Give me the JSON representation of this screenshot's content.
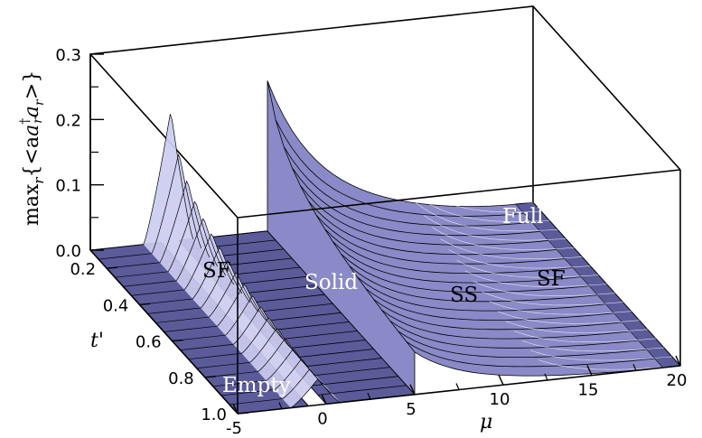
{
  "chart_data": {
    "type": "surface",
    "xlabel": "μ",
    "ylabel": "t'",
    "zlabel": "max_r{<a_r† a_r>}",
    "ylabel_main": "max",
    "ylabel_sub_r": "r",
    "ylabel_body": "{<a",
    "ylabel_sup": "†",
    "ylabel_body2": "a",
    "ylabel_end": ">}",
    "x_ticks": [
      "-5",
      "0",
      "5",
      "10",
      "15",
      "20"
    ],
    "y_ticks": [
      "0.2",
      "0.4",
      "0.6",
      "0.8",
      "1.0"
    ],
    "z_ticks": [
      "0.0",
      "0.1",
      "0.2",
      "0.3"
    ],
    "xlim": [
      -5,
      20
    ],
    "ylim": [
      0.1,
      1.0
    ],
    "zlim": [
      0,
      0.3
    ],
    "regions": [
      {
        "label": "Empty",
        "mu_range": [
          -5,
          -1.0
        ]
      },
      {
        "label": "SF",
        "mu_range": [
          -1.0,
          0.0
        ]
      },
      {
        "label": "Solid",
        "mu_range": [
          0.0,
          5.0
        ]
      },
      {
        "label": "SS",
        "mu_range": [
          5.0,
          15.0
        ]
      },
      {
        "label": "SF",
        "mu_range": [
          15.0,
          19.0
        ]
      },
      {
        "label": "Full",
        "mu_range": [
          19.0,
          20.0
        ]
      }
    ],
    "peaks": [
      {
        "name": "SF peak near mu=0",
        "mu": -1.0,
        "t_prime": 0.1,
        "value": 0.2
      },
      {
        "name": "SS peak",
        "mu": 5.0,
        "t_prime": 0.1,
        "value": 0.23
      }
    ],
    "colors": {
      "dark_flat": "#5b5b9a",
      "light_surface": "#ccccf0",
      "mid_surface": "#8a8ac8"
    }
  }
}
